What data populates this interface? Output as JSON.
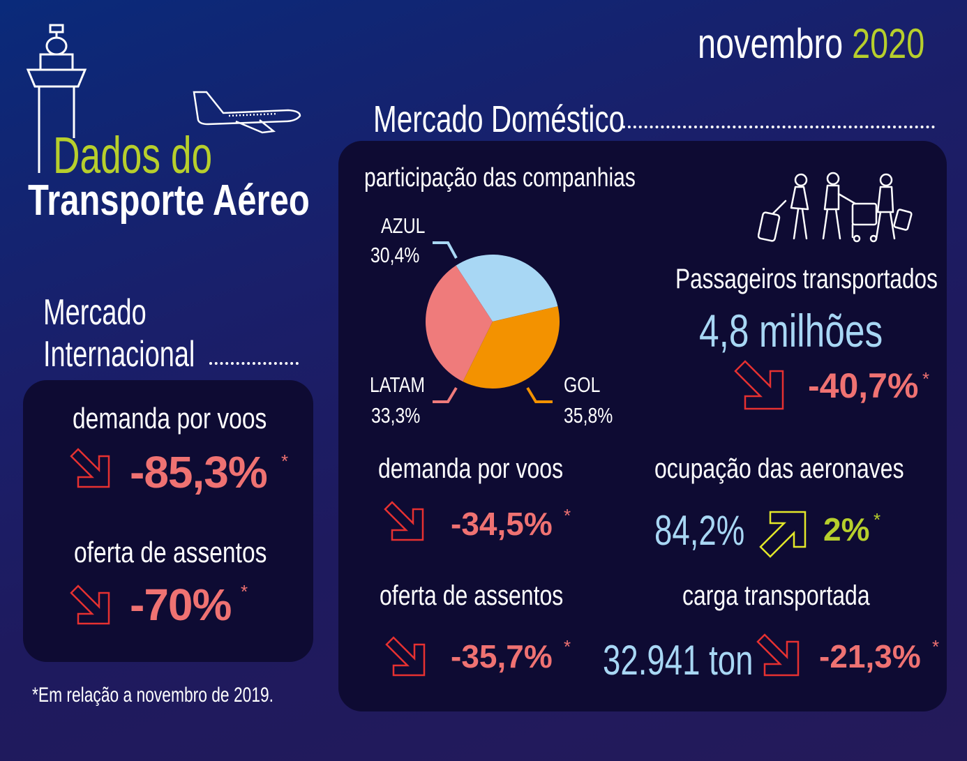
{
  "header": {
    "month": "novembro",
    "year": "2020",
    "title_line1": "Dados do",
    "title_line2": "Transporte Aéreo"
  },
  "colors": {
    "accent_green": "#b7cf2c",
    "negative_red": "#ef7272",
    "light_blue": "#a8d7f4",
    "panel": "#0e0b33",
    "gol_orange": "#f39200"
  },
  "international": {
    "heading_line1": "Mercado",
    "heading_line2": "Internacional",
    "demand_label": "demanda por voos",
    "demand_value": "-85,3%",
    "seats_label": "oferta de assentos",
    "seats_value": "-70%",
    "asterisk": "*"
  },
  "footnote": "*Em relação a novembro de 2019.",
  "domestic": {
    "heading": "Mercado Doméstico",
    "share_title": "participação das companhias",
    "passengers_label": "Passageiros transportados",
    "passengers_value": "4,8 milhões",
    "passengers_change": "-40,7%",
    "demand_label": "demanda por voos",
    "demand_value": "-34,5%",
    "occupancy_label": "ocupação das aeronaves",
    "occupancy_value": "84,2%",
    "occupancy_change": "2%",
    "seats_label": "oferta de assentos",
    "seats_value": "-35,7%",
    "cargo_label": "carga transportada",
    "cargo_value": "32.941 ton",
    "cargo_change": "-21,3%",
    "asterisk": "*"
  },
  "chart_data": {
    "type": "pie",
    "title": "participação das companhias",
    "slices": [
      {
        "name": "AZUL",
        "label": "30,4%",
        "value": 30.4,
        "color": "#a8d7f4"
      },
      {
        "name": "GOL",
        "label": "35,8%",
        "value": 35.8,
        "color": "#f39200"
      },
      {
        "name": "LATAM",
        "label": "33,3%",
        "value": 33.3,
        "color": "#ef7b7b"
      }
    ]
  }
}
